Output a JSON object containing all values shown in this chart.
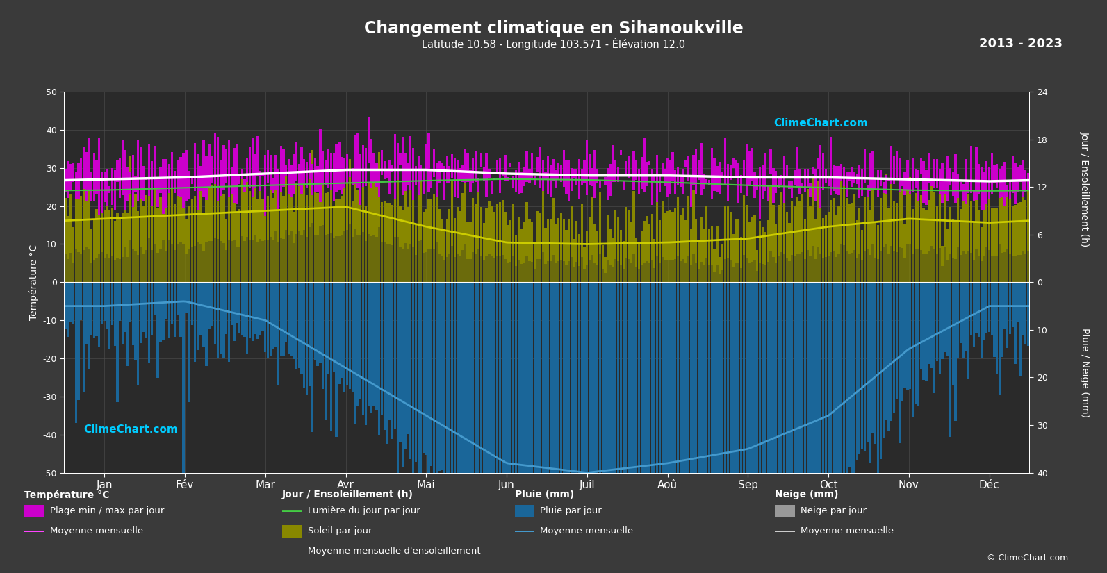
{
  "title": "Changement climatique en Sihanoukville",
  "subtitle": "Latitude 10.58 - Longitude 103.571 - Élévation 12.0",
  "year_range": "2013 - 2023",
  "bg_color": "#3a3a3a",
  "plot_bg_color": "#2a2a2a",
  "grid_color": "#505050",
  "months": [
    "Jan",
    "Fév",
    "Mar",
    "Avr",
    "Mai",
    "Jun",
    "Juil",
    "Aoû",
    "Sep",
    "Oct",
    "Nov",
    "Déc"
  ],
  "days_per_month": [
    31,
    28,
    31,
    30,
    31,
    30,
    31,
    31,
    30,
    31,
    30,
    31
  ],
  "temp_min_monthly": [
    22.5,
    23.0,
    24.0,
    25.0,
    25.5,
    25.5,
    25.0,
    25.0,
    24.5,
    24.5,
    23.5,
    22.5
  ],
  "temp_max_monthly": [
    31.5,
    32.5,
    33.5,
    34.5,
    33.5,
    31.5,
    31.0,
    31.0,
    30.5,
    30.5,
    30.5,
    30.5
  ],
  "temp_mean_monthly": [
    27.0,
    27.5,
    28.5,
    29.5,
    29.5,
    28.5,
    28.0,
    28.0,
    27.5,
    27.5,
    27.0,
    26.5
  ],
  "temp_min_noise": 2.5,
  "temp_max_noise": 3.0,
  "sunshine_min_monthly": [
    3.5,
    4.5,
    5.5,
    6.5,
    4.0,
    2.5,
    2.5,
    2.5,
    2.5,
    3.5,
    4.0,
    3.5
  ],
  "sunshine_max_monthly": [
    10.5,
    11.0,
    11.5,
    12.5,
    10.0,
    7.5,
    7.5,
    8.0,
    8.0,
    9.5,
    10.5,
    10.0
  ],
  "sunshine_mean_monthly": [
    8.0,
    8.5,
    9.0,
    9.5,
    7.0,
    5.0,
    4.8,
    5.0,
    5.5,
    7.0,
    8.0,
    7.5
  ],
  "sunshine_noise": 2.0,
  "daylight_monthly": [
    11.6,
    11.9,
    12.2,
    12.5,
    12.8,
    13.0,
    12.9,
    12.6,
    12.2,
    11.9,
    11.6,
    11.5
  ],
  "rain_max_daily_monthly": [
    8,
    6,
    10,
    20,
    35,
    50,
    55,
    50,
    50,
    45,
    20,
    8
  ],
  "rain_mean_monthly": [
    5,
    4,
    8,
    18,
    28,
    38,
    40,
    38,
    35,
    28,
    14,
    5
  ],
  "rain_noise": 10,
  "temp_fill_color": "#cc00cc",
  "temp_mean_color": "#ff44ff",
  "sunshine_fill_color": "#888800",
  "sunshine_mean_color": "#cccc00",
  "daylight_color": "#44cc44",
  "rain_bar_color": "#1a6699",
  "rain_mean_color": "#4499cc",
  "snow_bar_color": "#999999",
  "snow_mean_color": "#cccccc",
  "text_color": "#ffffff",
  "climechart_color": "#00ccff",
  "ylabel_left": "Température °C",
  "ylabel_right_top": "Jour / Ensoleillement (h)",
  "ylabel_right_bottom": "Pluie / Neige (mm)",
  "ylim_temp": [
    -50,
    50
  ],
  "ylim_sun": [
    0,
    24
  ],
  "ylim_rain": [
    0,
    40
  ],
  "sun_to_temp_scale": 2.0833,
  "rain_to_temp_scale": 1.25
}
